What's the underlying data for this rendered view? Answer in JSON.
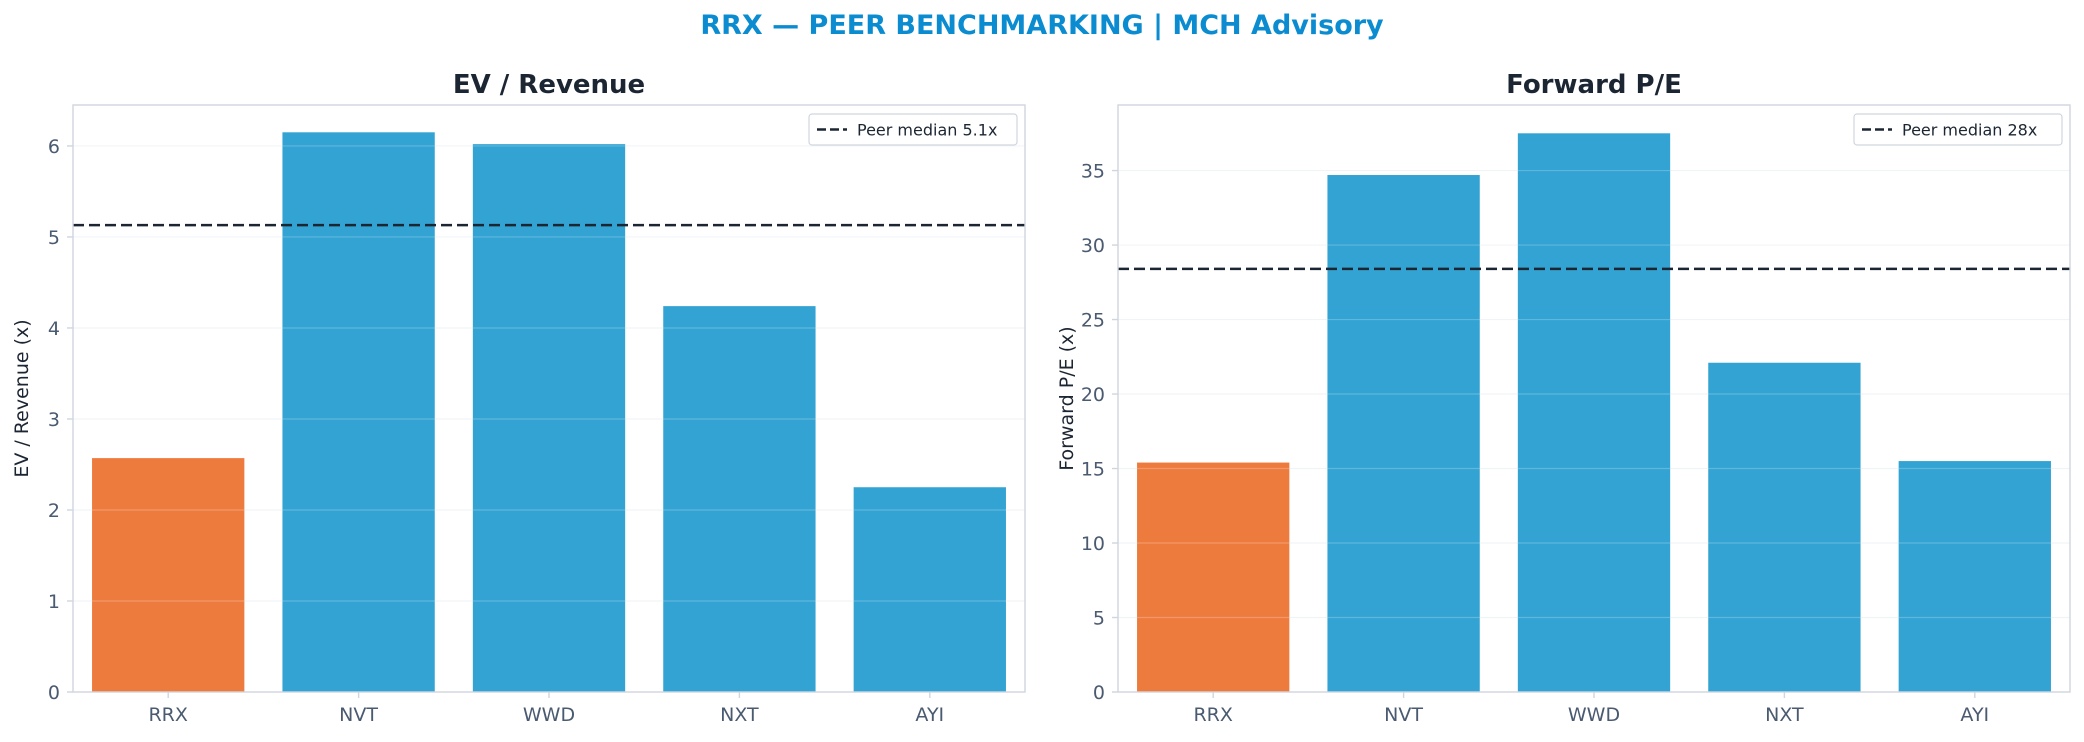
{
  "suptitle": "RRX — PEER BENCHMARKING | MCH Advisory",
  "colors": {
    "title": "#0b8bd0",
    "subject_bar": "#ee7b3e",
    "peer_bar": "#33a3d3",
    "axis_text": "#4a5a70",
    "heading_text": "#1c2633",
    "median_line": "#1c2633",
    "grid": "#eef1f5",
    "spine": "#cfd6df"
  },
  "chart_data": [
    {
      "type": "bar",
      "title": "EV / Revenue",
      "ylabel": "EV / Revenue (x)",
      "xlabel": "",
      "categories": [
        "RRX",
        "NVT",
        "WWD",
        "NXT",
        "AYI"
      ],
      "values": [
        2.57,
        6.15,
        6.02,
        4.24,
        2.25
      ],
      "highlight": "RRX",
      "ylim": [
        0,
        6.45
      ],
      "yticks": [
        0,
        1,
        2,
        3,
        4,
        5,
        6
      ],
      "grid": true,
      "reference_line": {
        "value": 5.13,
        "label": "Peer median 5.1x"
      },
      "legend_position": "top-right"
    },
    {
      "type": "bar",
      "title": "Forward P/E",
      "ylabel": "Forward P/E (x)",
      "xlabel": "",
      "categories": [
        "RRX",
        "NVT",
        "WWD",
        "NXT",
        "AYI"
      ],
      "values": [
        15.4,
        34.7,
        37.5,
        22.1,
        15.5
      ],
      "highlight": "RRX",
      "ylim": [
        0,
        39.4
      ],
      "yticks": [
        0,
        5,
        10,
        15,
        20,
        25,
        30,
        35
      ],
      "grid": true,
      "reference_line": {
        "value": 28.4,
        "label": "Peer median 28x"
      },
      "legend_position": "top-right"
    }
  ]
}
